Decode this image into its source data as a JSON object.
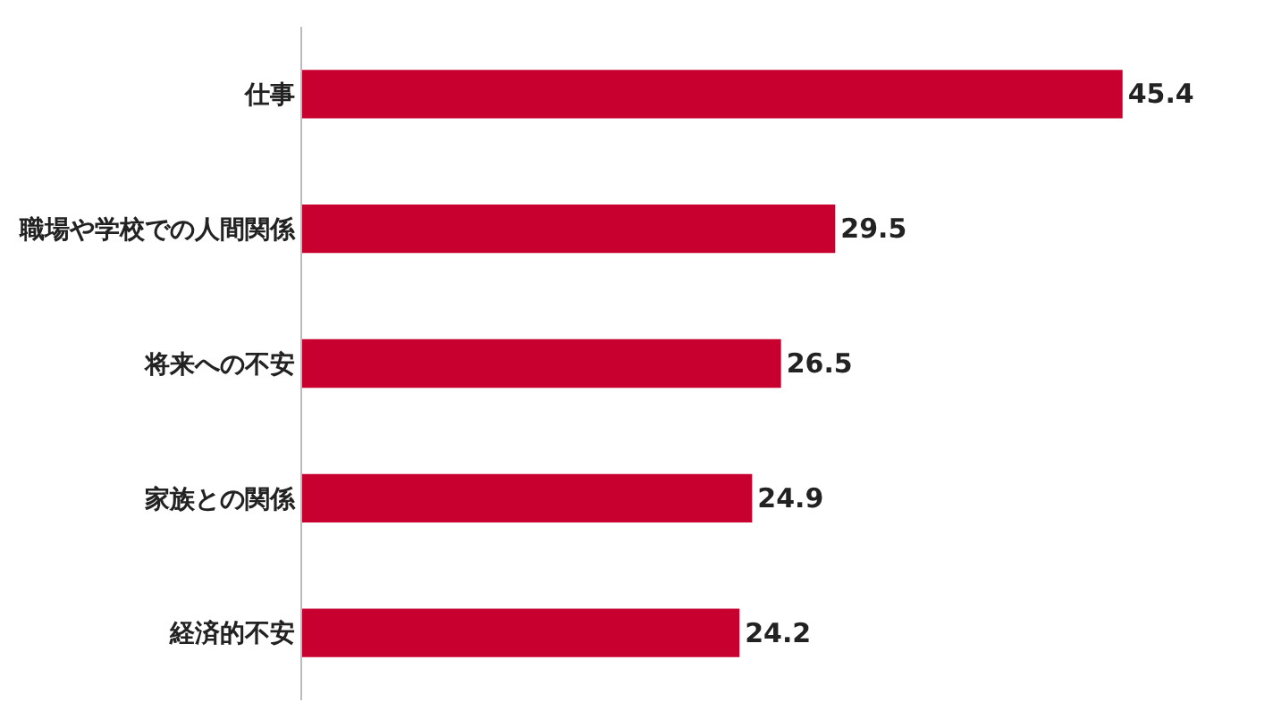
{
  "chart_data": {
    "type": "bar",
    "orientation": "horizontal",
    "categories": [
      "仕事",
      "職場や学校での人間関係",
      "将来への不安",
      "家族との関係",
      "経済的不安"
    ],
    "values": [
      45.4,
      29.5,
      26.5,
      24.9,
      24.2
    ],
    "color": "#c8002f",
    "data_labels": true,
    "tick_labels": "y"
  }
}
